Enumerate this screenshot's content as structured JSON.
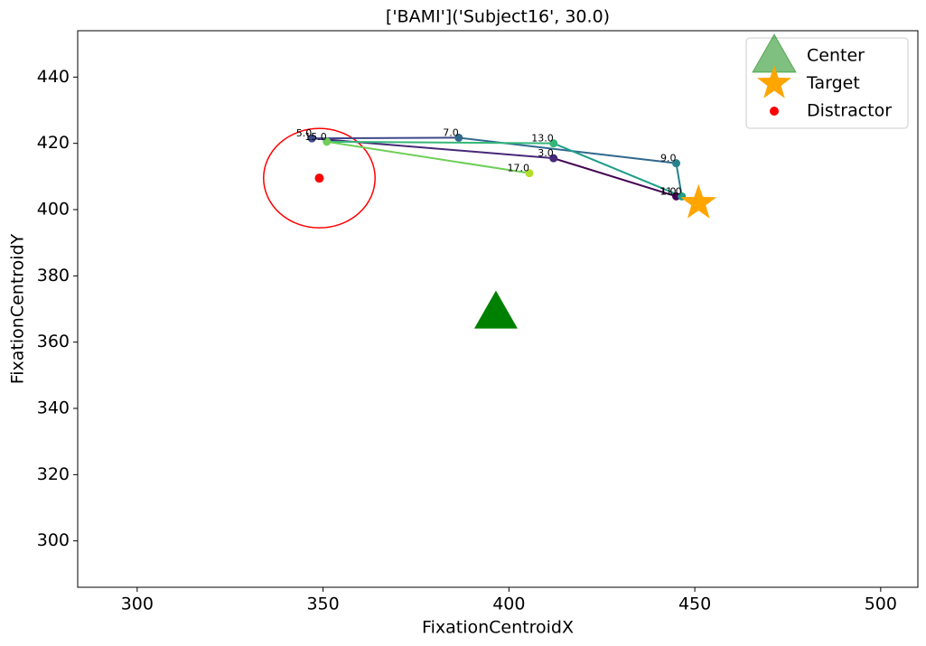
{
  "chart_data": {
    "type": "scatter",
    "title": "['BAMI']('Subject16', 30.0)",
    "x_label": "FixationCentroidX",
    "y_label": "FixationCentroidY",
    "xlim": [
      284,
      510
    ],
    "ylim": [
      286,
      454
    ],
    "xticks": [
      300,
      350,
      400,
      450,
      500
    ],
    "yticks": [
      300,
      320,
      340,
      360,
      380,
      400,
      420,
      440
    ],
    "legend_position": "upper right",
    "fixations": {
      "x": [
        445,
        412,
        347,
        386.5,
        445,
        446.5,
        412,
        351,
        405.5
      ],
      "y": [
        404,
        415.5,
        421.5,
        421.7,
        414,
        404,
        420,
        420.5,
        411
      ],
      "labels": [
        "1.0",
        "3.0",
        "5.0",
        "7.0",
        "9.0",
        "11.0",
        "13.0",
        "15.0",
        "17.0"
      ],
      "colors": [
        "#440154",
        "#482878",
        "#3e4989",
        "#31688e",
        "#26828e",
        "#1f9e89",
        "#35b779",
        "#6ece58",
        "#b5de2b"
      ]
    },
    "series": [
      {
        "name": "Center",
        "color": "#008000",
        "x": [
          396.5
        ],
        "y": [
          369
        ]
      },
      {
        "name": "Target",
        "color": "#ffa500",
        "x": [
          451
        ],
        "y": [
          402
        ]
      },
      {
        "name": "Distractor",
        "color": "#ff0000",
        "x": [
          349
        ],
        "y": [
          409.5
        ],
        "radius": 15
      }
    ]
  }
}
